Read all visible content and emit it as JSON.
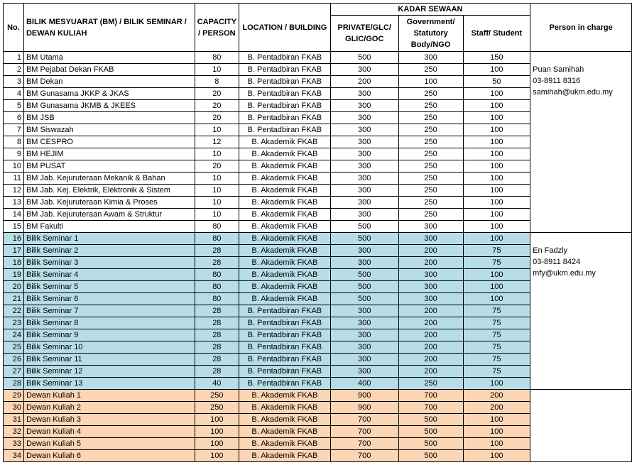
{
  "header": {
    "no": "No.",
    "room": "BILIK MESYUARAT (BM) / BILIK SEMINAR / DEWAN KULIAH",
    "capacity": "CAPACITY / PERSON",
    "location": "LOCATION / BUILDING",
    "rates": "KADAR SEWAAN",
    "private": "PRIVATE/GLC/ GLIC/GOC",
    "government": "Government/ Statutory Body/NGO",
    "staff": "Staff/ Student",
    "person": "Person in charge"
  },
  "table": {
    "groups": [
      {
        "color": "#ffffff",
        "contact": [
          "Puan Samihah",
          "03-8911 8316",
          "samihah@ukm.edu.my"
        ],
        "rows": [
          [
            1,
            "BM Utama",
            80,
            "B. Pentadbiran FKAB",
            500,
            300,
            150
          ],
          [
            2,
            "BM Pejabat Dekan FKAB",
            10,
            "B. Pentadbiran FKAB",
            300,
            250,
            100
          ],
          [
            3,
            "BM Dekan",
            8,
            "B. Pentadbiran FKAB",
            200,
            100,
            50
          ],
          [
            4,
            "BM Gunasama JKKP & JKAS",
            20,
            "B. Pentadbiran FKAB",
            300,
            250,
            100
          ],
          [
            5,
            "BM Gunasama JKMB & JKEES",
            20,
            "B. Pentadbiran FKAB",
            300,
            250,
            100
          ],
          [
            6,
            "BM JSB",
            20,
            "B. Pentadbiran FKAB",
            300,
            250,
            100
          ],
          [
            7,
            "BM Siswazah",
            10,
            "B. Pentadbiran FKAB",
            300,
            250,
            100
          ],
          [
            8,
            "BM CESPRO",
            12,
            "B. Akademik FKAB",
            300,
            250,
            100
          ],
          [
            9,
            "BM HEJIM",
            10,
            "B. Akademik FKAB",
            300,
            250,
            100
          ],
          [
            10,
            "BM PUSAT",
            20,
            "B. Akademik FKAB",
            300,
            250,
            100
          ],
          [
            11,
            "BM Jab. Kejuruteraan Mekanik & Bahan",
            10,
            "B. Akademik FKAB",
            300,
            250,
            100
          ],
          [
            12,
            "BM Jab. Kej. Elektrik, Elektronik & Sistem",
            10,
            "B. Akademik FKAB",
            300,
            250,
            100
          ],
          [
            13,
            "BM Jab. Kejuruteraan Kimia & Proses",
            10,
            "B. Akademik FKAB",
            300,
            250,
            100
          ],
          [
            14,
            "BM Jab. Kejuruteraan Awam & Struktur",
            10,
            "B. Akademik FKAB",
            300,
            250,
            100
          ],
          [
            15,
            "BM Fakulti",
            80,
            "B. Akademik FKAB",
            500,
            300,
            100
          ]
        ]
      },
      {
        "color": "#b7dee8",
        "contact": [
          "En Fadzly",
          "03-8911 8424",
          "mfy@ukm.edu.my"
        ],
        "rows": [
          [
            16,
            "Bilik Seminar 1",
            80,
            "B. Akademik FKAB",
            500,
            300,
            100
          ],
          [
            17,
            "Bilik Seminar 2",
            28,
            "B. Akademik FKAB",
            300,
            200,
            75
          ],
          [
            18,
            "Bilik Seminar 3",
            28,
            "B. Akademik FKAB",
            300,
            200,
            75
          ],
          [
            19,
            "Bilik Seminar 4",
            80,
            "B. Akademik FKAB",
            500,
            300,
            100
          ],
          [
            20,
            "Bilik Seminar 5",
            80,
            "B. Akademik FKAB",
            500,
            300,
            100
          ],
          [
            21,
            "Bilik Seminar 6",
            80,
            "B. Akademik FKAB",
            500,
            300,
            100
          ],
          [
            22,
            "Bilik Seminar 7",
            28,
            "B. Pentadbiran FKAB",
            300,
            200,
            75
          ],
          [
            23,
            "Bilik Seminar 8",
            28,
            "B. Pentadbiran FKAB",
            300,
            200,
            75
          ],
          [
            24,
            "Bilik Seminar 9",
            28,
            "B. Pentadbiran FKAB",
            300,
            200,
            75
          ],
          [
            25,
            "Bilik Seminar 10",
            28,
            "B. Pentadbiran FKAB",
            300,
            200,
            75
          ],
          [
            26,
            "Bilik Seminar 11",
            28,
            "B. Pentadbiran FKAB",
            300,
            200,
            75
          ],
          [
            27,
            "Bilik Seminar 12",
            28,
            "B. Pentadbiran FKAB",
            300,
            200,
            75
          ],
          [
            28,
            "Bilik Seminar 13",
            40,
            "B. Pentadbiran FKAB",
            400,
            250,
            100
          ]
        ]
      },
      {
        "color": "#fcd5b4",
        "contact": [],
        "rows": [
          [
            29,
            "Dewan Kuliah 1",
            250,
            "B. Akademik FKAB",
            900,
            700,
            200
          ],
          [
            30,
            "Dewan Kuliah 2",
            250,
            "B. Akademik FKAB",
            900,
            700,
            200
          ],
          [
            31,
            "Dewan Kuliah 3",
            100,
            "B. Akademik FKAB",
            700,
            500,
            100
          ],
          [
            32,
            "Dewan Kuliah 4",
            100,
            "B. Akademik FKAB",
            700,
            500,
            100
          ],
          [
            33,
            "Dewan Kuliah 5",
            100,
            "B. Akademik FKAB",
            700,
            500,
            100
          ],
          [
            34,
            "Dewan Kuliah 6",
            100,
            "B. Akademik FKAB",
            700,
            500,
            100
          ]
        ]
      }
    ]
  }
}
